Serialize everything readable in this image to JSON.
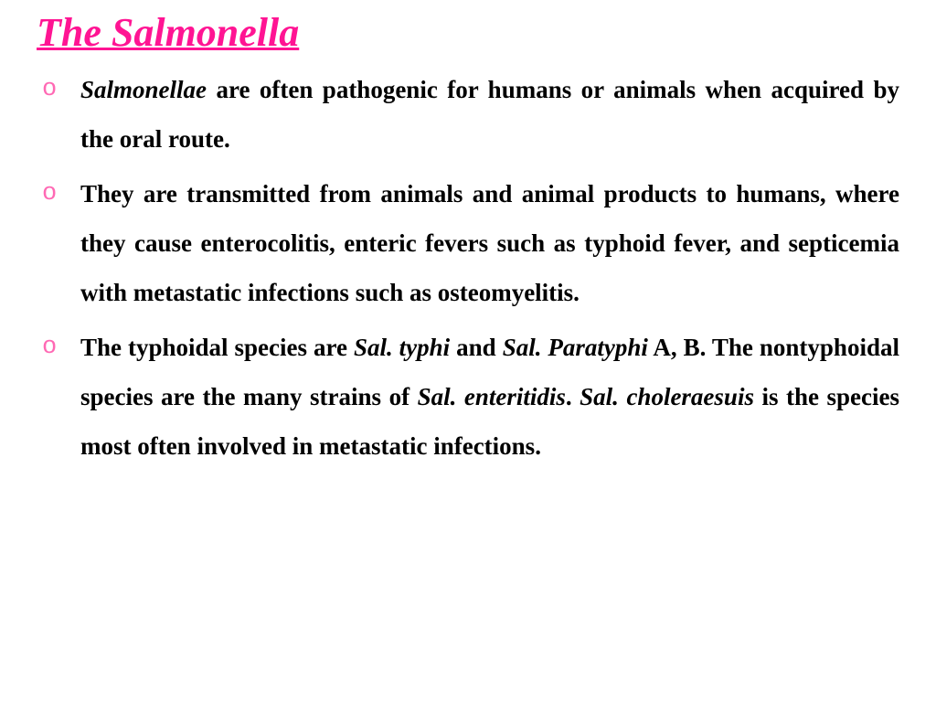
{
  "slide": {
    "title": "The Salmonella",
    "title_color": "#ff1493",
    "bullet_color": "#ff69b4",
    "text_color": "#000000",
    "background_color": "#ffffff",
    "title_fontsize": 44,
    "body_fontsize": 27,
    "bullets": [
      {
        "runs": [
          {
            "text": "Salmonellae",
            "italic": true
          },
          {
            "text": " are often pathogenic for humans or animals when acquired by the oral route.",
            "italic": false
          }
        ]
      },
      {
        "runs": [
          {
            "text": "They are transmitted from animals and animal products to humans, where they cause enterocolitis, enteric fevers such as typhoid fever, and septicemia with metastatic infections such as osteomyelitis.",
            "italic": false
          }
        ]
      },
      {
        "runs": [
          {
            "text": "The typhoidal species are ",
            "italic": false
          },
          {
            "text": "Sal. typhi",
            "italic": true
          },
          {
            "text": " and ",
            "italic": false
          },
          {
            "text": "Sal. Paratyphi",
            "italic": true
          },
          {
            "text": " A, B. The nontyphoidal species are the many strains of ",
            "italic": false
          },
          {
            "text": "Sal. enteritidis",
            "italic": true
          },
          {
            "text": ". ",
            "italic": false
          },
          {
            "text": "Sal. choleraesuis",
            "italic": true
          },
          {
            "text": " is the species most often involved in metastatic infections.",
            "italic": false
          }
        ]
      }
    ]
  }
}
